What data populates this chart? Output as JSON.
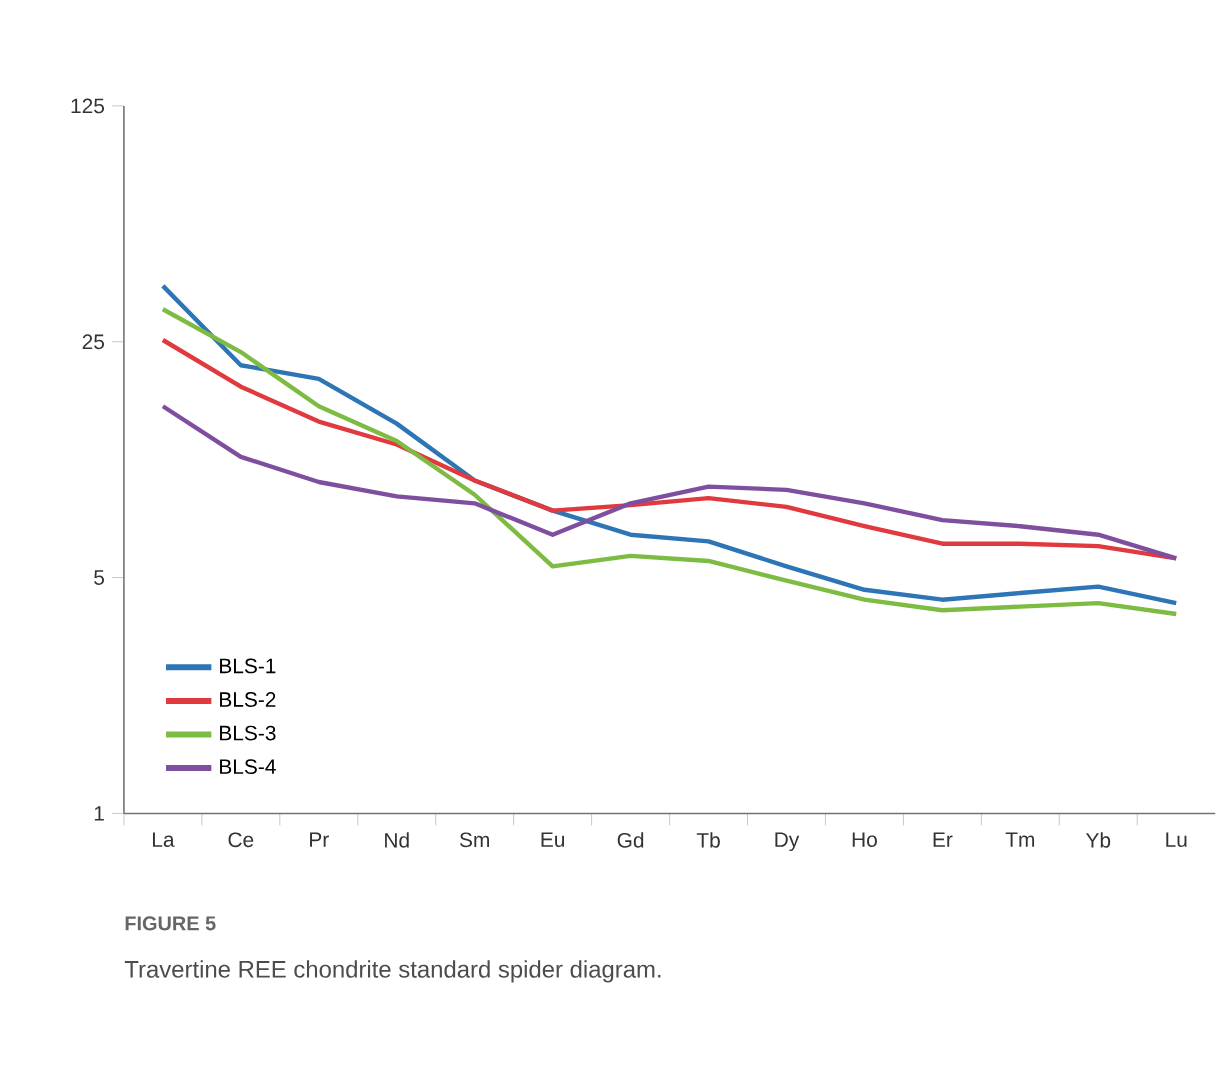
{
  "chart_data": {
    "type": "line",
    "categories": [
      "La",
      "Ce",
      "Pr",
      "Nd",
      "Sm",
      "Eu",
      "Gd",
      "Tb",
      "Dy",
      "Ho",
      "Er",
      "Tm",
      "Yb",
      "Lu"
    ],
    "series": [
      {
        "name": "BLS-1",
        "color": "#2e75b6",
        "values": [
          36.6,
          21.3,
          19.4,
          14.3,
          9.7,
          7.9,
          6.7,
          6.4,
          5.4,
          4.6,
          4.3,
          4.5,
          4.7,
          4.2
        ]
      },
      {
        "name": "BLS-2",
        "color": "#e0393e",
        "values": [
          25.3,
          18.4,
          14.5,
          12.4,
          9.7,
          7.9,
          8.2,
          8.6,
          8.1,
          7.1,
          6.3,
          6.3,
          6.2,
          5.7
        ]
      },
      {
        "name": "BLS-3",
        "color": "#7dbb42",
        "values": [
          31.2,
          23.3,
          16.1,
          12.7,
          8.8,
          5.4,
          5.8,
          5.6,
          4.9,
          4.3,
          4.0,
          4.1,
          4.2,
          3.9
        ]
      },
      {
        "name": "BLS-4",
        "color": "#7f4f9f",
        "values": [
          16.1,
          11.4,
          9.6,
          8.7,
          8.3,
          6.7,
          8.3,
          9.3,
          9.1,
          8.3,
          7.4,
          7.1,
          6.7,
          5.7
        ]
      }
    ],
    "log": true,
    "ylim": [
      1,
      125
    ],
    "yticks": [
      1,
      5,
      25,
      125
    ],
    "legend": "bottom left",
    "grid": false,
    "marker": "none",
    "line_style": "solid",
    "annotations": [
      "FIGURE 5",
      "Travertine REE chondrite standard spider diagram."
    ]
  }
}
